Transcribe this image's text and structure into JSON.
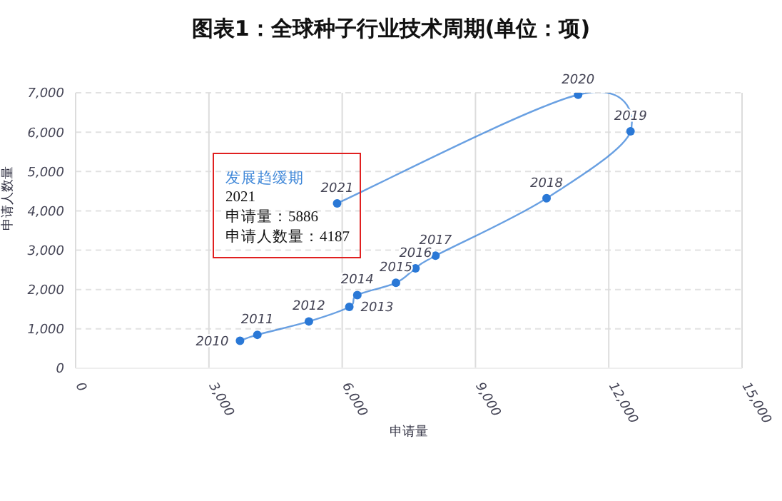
{
  "chart_data": {
    "type": "line",
    "title": "图表1：全球种子行业技术周期(单位：项)",
    "xlabel": "申请量",
    "ylabel": "申请人数量",
    "x": [
      3700,
      4090,
      5250,
      6160,
      6340,
      7210,
      7650,
      8100,
      10600,
      12490,
      11310,
      5886
    ],
    "values": [
      700,
      850,
      1190,
      1560,
      1860,
      2170,
      2540,
      2860,
      4320,
      6020,
      6950,
      4190
    ],
    "color": "#2a78d6",
    "marker": "circle",
    "line_style": "solid",
    "xlim": [
      0,
      15000
    ],
    "xticks": [
      {
        "value": 0,
        "label": "0"
      },
      {
        "value": 3000,
        "label": "3,000"
      },
      {
        "value": 6000,
        "label": "6,000"
      },
      {
        "value": 9000,
        "label": "9,000"
      },
      {
        "value": 12000,
        "label": "12,000"
      },
      {
        "value": 15000,
        "label": "15,000"
      }
    ],
    "ylim": [
      0,
      7000
    ],
    "yticks": [
      {
        "value": 0,
        "label": "0"
      },
      {
        "value": 1000,
        "label": "1,000"
      },
      {
        "value": 2000,
        "label": "2,000"
      },
      {
        "value": 3000,
        "label": "3,000"
      },
      {
        "value": 4000,
        "label": "4,000"
      },
      {
        "value": 5000,
        "label": "5,000"
      },
      {
        "value": 6000,
        "label": "6,000"
      },
      {
        "value": 7000,
        "label": "7,000"
      }
    ],
    "grid": true,
    "legend": false,
    "annotations": [
      {
        "text": "2010",
        "x": 3700,
        "y": 700
      },
      {
        "text": "2011",
        "x": 4090,
        "y": 850
      },
      {
        "text": "2012",
        "x": 5250,
        "y": 1190
      },
      {
        "text": "2013",
        "x": 6160,
        "y": 1560
      },
      {
        "text": "2014",
        "x": 6340,
        "y": 1860
      },
      {
        "text": "2015",
        "x": 7210,
        "y": 2170
      },
      {
        "text": "2016",
        "x": 7650,
        "y": 2540
      },
      {
        "text": "2017",
        "x": 8100,
        "y": 2860
      },
      {
        "text": "2018",
        "x": 10600,
        "y": 4320
      },
      {
        "text": "2019",
        "x": 12490,
        "y": 6020
      },
      {
        "text": "2020",
        "x": 11310,
        "y": 6950
      },
      {
        "text": "2021",
        "x": 5886,
        "y": 4190
      },
      "发展趋缓期",
      "2021",
      "申请量：5886",
      "申请人数量：4187"
    ]
  }
}
